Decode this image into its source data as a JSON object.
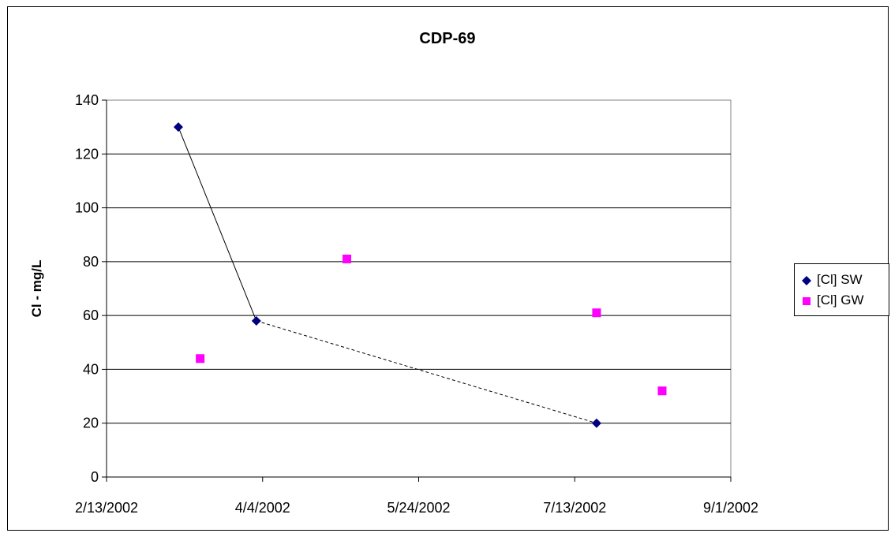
{
  "chart_data": {
    "type": "scatter",
    "title": "CDP-69",
    "xlabel": "",
    "ylabel": "Cl - mg/L",
    "xlim": [
      "2002-02-13",
      "2002-09-01"
    ],
    "ylim": [
      0,
      140
    ],
    "x_ticks": [
      "2/13/2002",
      "4/4/2002",
      "5/24/2002",
      "7/13/2002",
      "9/1/2002"
    ],
    "y_ticks": [
      0,
      20,
      40,
      60,
      80,
      100,
      120,
      140
    ],
    "grid": "horizontal",
    "legend_position": "right",
    "series": [
      {
        "name": "[Cl] SW",
        "marker": "diamond",
        "color": "#000080",
        "points": [
          {
            "x": "2002-03-08",
            "y": 130
          },
          {
            "x": "2002-04-02",
            "y": 58
          },
          {
            "x": "2002-07-20",
            "y": 20
          }
        ]
      },
      {
        "name": "[Cl] GW",
        "marker": "square",
        "color": "#FF00FF",
        "points": [
          {
            "x": "2002-03-15",
            "y": 44
          },
          {
            "x": "2002-05-01",
            "y": 81
          },
          {
            "x": "2002-07-20",
            "y": 61
          },
          {
            "x": "2002-08-10",
            "y": 32
          }
        ]
      }
    ],
    "connectors": [
      {
        "style": "solid",
        "from": {
          "x": "2002-03-08",
          "y": 130
        },
        "to": {
          "x": "2002-04-02",
          "y": 58
        }
      },
      {
        "style": "dashed",
        "from": {
          "x": "2002-04-02",
          "y": 58
        },
        "to": {
          "x": "2002-07-20",
          "y": 20
        }
      }
    ]
  }
}
